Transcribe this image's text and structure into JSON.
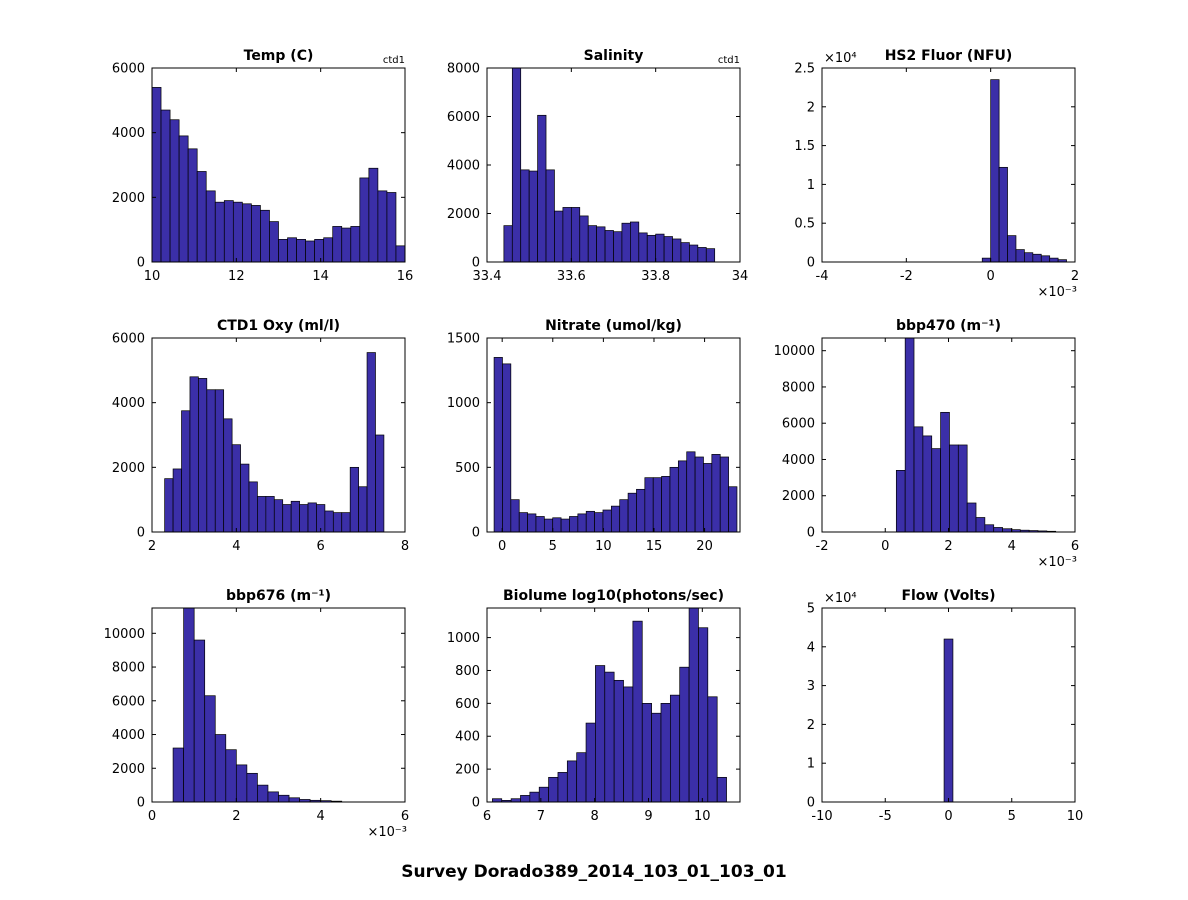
{
  "figure_title": "Survey Dorado389_2014_103_01_103_01",
  "colors": {
    "bar_fill": "#3b2fa8",
    "bar_edge": "#000000",
    "axis": "#000000",
    "background": "#ffffff"
  },
  "chart_data": [
    {
      "type": "bar",
      "kind": "histogram",
      "title": "Temp (C)",
      "corner_label": "ctd1",
      "xlim": [
        10,
        16
      ],
      "ylim": [
        0,
        6000
      ],
      "xtick_vals": [
        10,
        12,
        14,
        16
      ],
      "xtick_labels": [
        "10",
        "12",
        "14",
        "16"
      ],
      "ytick_vals": [
        0,
        2000,
        4000,
        6000
      ],
      "ytick_labels": [
        "0",
        "2000",
        "4000",
        "6000"
      ],
      "bin_start": 10,
      "bin_end": 16,
      "values": [
        5400,
        4700,
        4400,
        3900,
        3500,
        2800,
        2200,
        1850,
        1900,
        1850,
        1800,
        1750,
        1600,
        1250,
        700,
        750,
        700,
        650,
        700,
        750,
        1100,
        1050,
        1100,
        2600,
        2900,
        2200,
        2150,
        500
      ]
    },
    {
      "type": "bar",
      "kind": "histogram",
      "title": "Salinity",
      "corner_label": "ctd1",
      "xlim": [
        33.4,
        34
      ],
      "ylim": [
        0,
        8000
      ],
      "xtick_vals": [
        33.4,
        33.6,
        33.8,
        34
      ],
      "xtick_labels": [
        "33.4",
        "33.6",
        "33.8",
        "34"
      ],
      "ytick_vals": [
        0,
        2000,
        4000,
        6000,
        8000
      ],
      "ytick_labels": [
        "0",
        "2000",
        "4000",
        "6000",
        "8000"
      ],
      "bin_start": 33.44,
      "bin_end": 33.94,
      "values": [
        1500,
        8000,
        3800,
        3750,
        6050,
        3800,
        2100,
        2250,
        2250,
        1900,
        1500,
        1450,
        1300,
        1250,
        1600,
        1650,
        1200,
        1100,
        1150,
        1050,
        950,
        800,
        700,
        600,
        550
      ]
    },
    {
      "type": "bar",
      "kind": "histogram",
      "title": "HS2 Fluor (NFU)",
      "xlim": [
        -4,
        2
      ],
      "ylim": [
        0,
        2.5
      ],
      "x_exp": "×10⁻³",
      "y_exp": "×10⁴",
      "xtick_vals": [
        -4,
        -2,
        0,
        2
      ],
      "xtick_labels": [
        "-4",
        "-2",
        "0",
        "2"
      ],
      "ytick_vals": [
        0,
        0.5,
        1,
        1.5,
        2,
        2.5
      ],
      "ytick_labels": [
        "0",
        "0.5",
        "1",
        "1.5",
        "2",
        "2.5"
      ],
      "bin_start": -0.2,
      "bin_end": 1.8,
      "values": [
        0.05,
        2.35,
        1.22,
        0.34,
        0.16,
        0.12,
        0.1,
        0.08,
        0.05,
        0.03
      ]
    },
    {
      "type": "bar",
      "kind": "histogram",
      "title": "CTD1 Oxy (ml/l)",
      "xlim": [
        2,
        8
      ],
      "ylim": [
        0,
        6000
      ],
      "xtick_vals": [
        2,
        4,
        6,
        8
      ],
      "xtick_labels": [
        "2",
        "4",
        "6",
        "8"
      ],
      "ytick_vals": [
        0,
        2000,
        4000,
        6000
      ],
      "ytick_labels": [
        "0",
        "2000",
        "4000",
        "6000"
      ],
      "bin_start": 2.3,
      "bin_end": 7.5,
      "values": [
        1650,
        1950,
        3750,
        4800,
        4750,
        4400,
        4400,
        3500,
        2700,
        2100,
        1550,
        1100,
        1100,
        1000,
        850,
        950,
        850,
        900,
        850,
        650,
        600,
        600,
        2000,
        1400,
        5550,
        3000
      ]
    },
    {
      "type": "bar",
      "kind": "histogram",
      "title": "Nitrate (umol/kg)",
      "xlim": [
        -1.5,
        23.5
      ],
      "ylim": [
        0,
        1500
      ],
      "xtick_vals": [
        0,
        5,
        10,
        15,
        20
      ],
      "xtick_labels": [
        "0",
        "5",
        "10",
        "15",
        "20"
      ],
      "ytick_vals": [
        0,
        500,
        1000,
        1500
      ],
      "ytick_labels": [
        "0",
        "500",
        "1000",
        "1500"
      ],
      "bin_start": -0.8,
      "bin_end": 23.2,
      "values": [
        1350,
        1300,
        250,
        150,
        140,
        120,
        100,
        110,
        100,
        120,
        140,
        160,
        150,
        170,
        200,
        250,
        300,
        330,
        420,
        420,
        430,
        500,
        550,
        620,
        580,
        530,
        600,
        580,
        350
      ]
    },
    {
      "type": "bar",
      "kind": "histogram",
      "title": "bbp470 (m⁻¹)",
      "xlim": [
        -2,
        6
      ],
      "ylim": [
        0,
        10700
      ],
      "x_exp": "×10⁻³",
      "xtick_vals": [
        -2,
        0,
        2,
        4,
        6
      ],
      "xtick_labels": [
        "-2",
        "0",
        "2",
        "4",
        "6"
      ],
      "ytick_vals": [
        0,
        2000,
        4000,
        6000,
        8000,
        10000
      ],
      "ytick_labels": [
        "0",
        "2000",
        "4000",
        "6000",
        "8000",
        "10000"
      ],
      "bin_start": 0.35,
      "bin_end": 5.39,
      "values": [
        3400,
        10700,
        5800,
        5300,
        4600,
        6600,
        4800,
        4800,
        1600,
        800,
        400,
        250,
        180,
        130,
        100,
        80,
        60,
        40
      ]
    },
    {
      "type": "bar",
      "kind": "histogram",
      "title": "bbp676 (m⁻¹)",
      "xlim": [
        0,
        6
      ],
      "ylim": [
        0,
        11500
      ],
      "x_exp": "×10⁻³",
      "xtick_vals": [
        0,
        2,
        4,
        6
      ],
      "xtick_labels": [
        "0",
        "2",
        "4",
        "6"
      ],
      "ytick_vals": [
        0,
        2000,
        4000,
        6000,
        8000,
        10000
      ],
      "ytick_labels": [
        "0",
        "2000",
        "4000",
        "6000",
        "8000",
        "10000"
      ],
      "bin_start": 0.5,
      "bin_end": 4.5,
      "values": [
        3200,
        11500,
        9600,
        6300,
        4000,
        3100,
        2200,
        1700,
        1000,
        600,
        400,
        250,
        150,
        100,
        80,
        50
      ]
    },
    {
      "type": "bar",
      "kind": "histogram",
      "title": "Biolume log10(photons/sec)",
      "xlim": [
        6,
        10.7
      ],
      "ylim": [
        0,
        1180
      ],
      "xtick_vals": [
        6,
        7,
        8,
        9,
        10
      ],
      "xtick_labels": [
        "6",
        "7",
        "8",
        "9",
        "10"
      ],
      "ytick_vals": [
        0,
        200,
        400,
        600,
        800,
        1000
      ],
      "ytick_labels": [
        "0",
        "200",
        "400",
        "600",
        "800",
        "1000"
      ],
      "bin_start": 6.1,
      "bin_end": 10.45,
      "values": [
        20,
        10,
        20,
        40,
        60,
        90,
        150,
        180,
        250,
        300,
        480,
        830,
        790,
        740,
        700,
        1100,
        600,
        540,
        600,
        650,
        820,
        1180,
        1060,
        640,
        150
      ]
    },
    {
      "type": "bar",
      "kind": "histogram",
      "title": "Flow (Volts)",
      "xlim": [
        -10,
        10
      ],
      "ylim": [
        0,
        5
      ],
      "y_exp": "×10⁴",
      "xtick_vals": [
        -10,
        -5,
        0,
        5,
        10
      ],
      "xtick_labels": [
        "-10",
        "-5",
        "0",
        "5",
        "10"
      ],
      "ytick_vals": [
        0,
        1,
        2,
        3,
        4,
        5
      ],
      "ytick_labels": [
        "0",
        "1",
        "2",
        "3",
        "4",
        "5"
      ],
      "bin_start": -0.35,
      "bin_end": 0.35,
      "values": [
        4.2
      ]
    }
  ]
}
